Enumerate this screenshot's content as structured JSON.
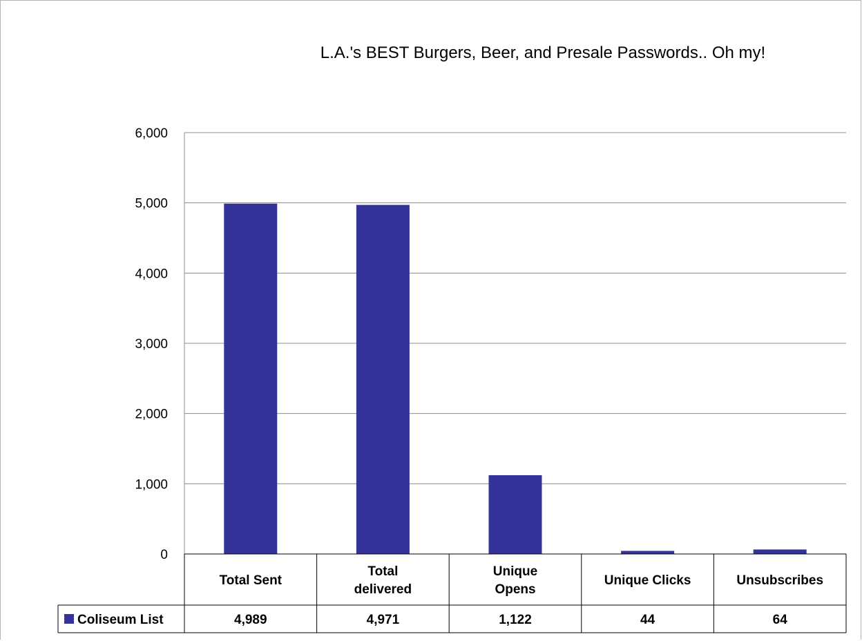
{
  "chart_data": {
    "type": "bar",
    "title": "L.A.'s BEST Burgers, Beer, and Presale Passwords.. Oh my!",
    "categories": [
      "Total Sent",
      "Total delivered",
      "Unique Opens",
      "Unique Clicks",
      "Unsubscribes"
    ],
    "category_label_lines": [
      [
        "Total Sent"
      ],
      [
        "Total",
        "delivered"
      ],
      [
        "Unique",
        "Opens"
      ],
      [
        "Unique Clicks"
      ],
      [
        "Unsubscribes"
      ]
    ],
    "series": [
      {
        "name": "Coliseum List",
        "values": [
          4989,
          4971,
          1122,
          44,
          64
        ],
        "display_values": [
          "4,989",
          "4,971",
          "1,122",
          "44",
          "64"
        ],
        "color": "#333399"
      }
    ],
    "ylim": [
      0,
      6000
    ],
    "yticks": [
      0,
      1000,
      2000,
      3000,
      4000,
      5000,
      6000
    ],
    "ytick_labels": [
      "0",
      "1,000",
      "2,000",
      "3,000",
      "4,000",
      "5,000",
      "6,000"
    ],
    "grid": true,
    "legend": "data-table-left",
    "xlabel": "",
    "ylabel": ""
  }
}
